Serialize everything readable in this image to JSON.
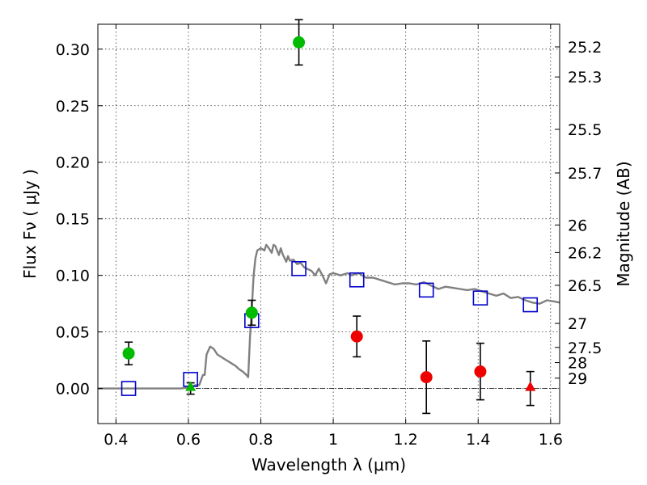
{
  "chart_data": {
    "type": "scatter",
    "xlabel": "Wavelength  λ (μm)",
    "ylabel": "Flux  Fν  ( μJy )",
    "y2label": "Magnitude (AB)",
    "xlim": [
      0.35,
      1.625
    ],
    "ylim": [
      -0.031,
      0.322
    ],
    "grid": true,
    "xticks": [
      0.4,
      0.6,
      0.8,
      1.0,
      1.2,
      1.4,
      1.6
    ],
    "xtick_labels": [
      "0.4",
      "0.6",
      "0.8",
      "1",
      "1.2",
      "1.4",
      "1.6"
    ],
    "yticks": [
      0.0,
      0.05,
      0.1,
      0.15,
      0.2,
      0.25,
      0.3
    ],
    "ytick_labels": [
      "0.00",
      "0.05",
      "0.10",
      "0.15",
      "0.20",
      "0.25",
      "0.30"
    ],
    "magnitude_ticks": [
      {
        "mag": 25.2,
        "label": "25.2"
      },
      {
        "mag": 25.3,
        "label": "25.3"
      },
      {
        "mag": 25.5,
        "label": "25.5"
      },
      {
        "mag": 25.7,
        "label": "25.7"
      },
      {
        "mag": 26.0,
        "label": "26"
      },
      {
        "mag": 26.2,
        "label": "26.2"
      },
      {
        "mag": 26.5,
        "label": "26.5"
      },
      {
        "mag": 27.0,
        "label": "27"
      },
      {
        "mag": 27.5,
        "label": "27.5"
      },
      {
        "mag": 28.0,
        "label": "28"
      },
      {
        "mag": 29.0,
        "label": "29"
      }
    ],
    "zero_line": true,
    "colors": {
      "model_line": "#808080",
      "green": "#00bb00",
      "red": "#ee0000",
      "model_box": "#0000cc",
      "errorbar": "#000000"
    },
    "series": [
      {
        "style": "line",
        "color": "model_line",
        "points": [
          [
            0.35,
            0.0
          ],
          [
            0.5,
            0.0
          ],
          [
            0.58,
            0.0
          ],
          [
            0.6,
            0.001
          ],
          [
            0.62,
            0.003
          ],
          [
            0.63,
            0.003
          ],
          [
            0.64,
            0.012
          ],
          [
            0.645,
            0.012
          ],
          [
            0.65,
            0.03
          ],
          [
            0.66,
            0.037
          ],
          [
            0.67,
            0.035
          ],
          [
            0.68,
            0.03
          ],
          [
            0.69,
            0.028
          ],
          [
            0.7,
            0.026
          ],
          [
            0.71,
            0.024
          ],
          [
            0.72,
            0.022
          ],
          [
            0.73,
            0.02
          ],
          [
            0.74,
            0.017
          ],
          [
            0.75,
            0.015
          ],
          [
            0.76,
            0.012
          ],
          [
            0.765,
            0.01
          ],
          [
            0.77,
            0.045
          ],
          [
            0.775,
            0.07
          ],
          [
            0.78,
            0.1
          ],
          [
            0.785,
            0.115
          ],
          [
            0.79,
            0.122
          ],
          [
            0.8,
            0.124
          ],
          [
            0.81,
            0.122
          ],
          [
            0.815,
            0.127
          ],
          [
            0.82,
            0.125
          ],
          [
            0.83,
            0.12
          ],
          [
            0.835,
            0.127
          ],
          [
            0.84,
            0.126
          ],
          [
            0.85,
            0.118
          ],
          [
            0.855,
            0.124
          ],
          [
            0.86,
            0.119
          ],
          [
            0.87,
            0.112
          ],
          [
            0.875,
            0.117
          ],
          [
            0.88,
            0.113
          ],
          [
            0.89,
            0.114
          ],
          [
            0.9,
            0.11
          ],
          [
            0.91,
            0.111
          ],
          [
            0.92,
            0.107
          ],
          [
            0.94,
            0.104
          ],
          [
            0.95,
            0.1
          ],
          [
            0.96,
            0.106
          ],
          [
            0.97,
            0.1
          ],
          [
            0.98,
            0.093
          ],
          [
            0.99,
            0.101
          ],
          [
            1.0,
            0.102
          ],
          [
            1.02,
            0.1
          ],
          [
            1.04,
            0.102
          ],
          [
            1.05,
            0.1
          ],
          [
            1.07,
            0.102
          ],
          [
            1.09,
            0.098
          ],
          [
            1.11,
            0.098
          ],
          [
            1.13,
            0.096
          ],
          [
            1.15,
            0.094
          ],
          [
            1.17,
            0.092
          ],
          [
            1.19,
            0.093
          ],
          [
            1.21,
            0.093
          ],
          [
            1.23,
            0.092
          ],
          [
            1.25,
            0.094
          ],
          [
            1.27,
            0.091
          ],
          [
            1.29,
            0.088
          ],
          [
            1.31,
            0.09
          ],
          [
            1.33,
            0.089
          ],
          [
            1.35,
            0.088
          ],
          [
            1.37,
            0.087
          ],
          [
            1.39,
            0.088
          ],
          [
            1.41,
            0.086
          ],
          [
            1.43,
            0.084
          ],
          [
            1.45,
            0.082
          ],
          [
            1.47,
            0.084
          ],
          [
            1.49,
            0.08
          ],
          [
            1.51,
            0.081
          ],
          [
            1.53,
            0.078
          ],
          [
            1.55,
            0.076
          ],
          [
            1.57,
            0.075
          ],
          [
            1.59,
            0.078
          ],
          [
            1.61,
            0.077
          ],
          [
            1.625,
            0.076
          ]
        ]
      },
      {
        "style": "square",
        "color": "model_box",
        "points": [
          [
            0.435,
            0.0
          ],
          [
            0.606,
            0.008
          ],
          [
            0.775,
            0.06
          ],
          [
            0.905,
            0.106
          ],
          [
            1.065,
            0.096
          ],
          [
            1.257,
            0.087
          ],
          [
            1.406,
            0.08
          ],
          [
            1.544,
            0.074
          ]
        ]
      },
      {
        "style": "circle",
        "color": "green",
        "points": [
          {
            "x": 0.435,
            "y": 0.031,
            "err": 0.01
          },
          {
            "x": 0.775,
            "y": 0.067,
            "err": 0.011
          },
          {
            "x": 0.905,
            "y": 0.306,
            "err": 0.02
          }
        ]
      },
      {
        "style": "triangle",
        "color": "green",
        "points": [
          {
            "x": 0.606,
            "y": 0.0,
            "err": 0.005
          }
        ]
      },
      {
        "style": "circle",
        "color": "red",
        "points": [
          {
            "x": 1.065,
            "y": 0.046,
            "err": 0.018
          },
          {
            "x": 1.257,
            "y": 0.01,
            "err": 0.032
          },
          {
            "x": 1.406,
            "y": 0.015,
            "err": 0.025
          }
        ]
      },
      {
        "style": "triangle",
        "color": "red",
        "points": [
          {
            "x": 1.544,
            "y": 0.0,
            "err": 0.015
          }
        ]
      }
    ]
  }
}
